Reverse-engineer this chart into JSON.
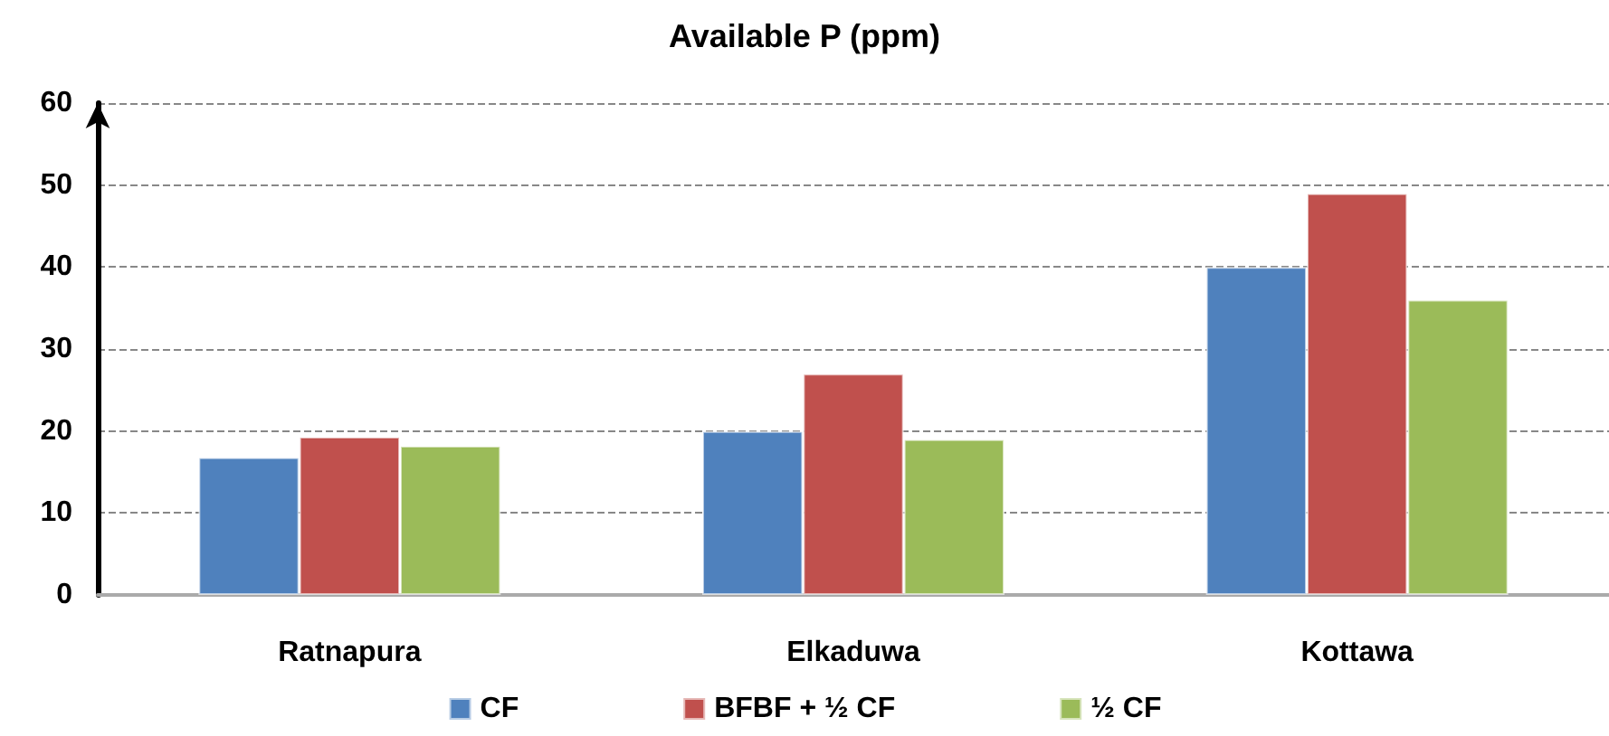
{
  "chart_data": {
    "type": "bar",
    "title": "Available P (ppm)",
    "categories": [
      "Ratnapura",
      "Elkaduwa",
      "Kottawa"
    ],
    "series": [
      {
        "name": "CF",
        "color": "#4f81bd",
        "values": [
          16.8,
          20,
          40
        ]
      },
      {
        "name": "BFBF + ½ CF",
        "color": "#c0504d",
        "values": [
          19.3,
          27,
          49
        ]
      },
      {
        "name": "½ CF",
        "color": "#9bbb59",
        "values": [
          18.2,
          19,
          36
        ]
      }
    ],
    "ylim": [
      0,
      60
    ],
    "yticks": [
      0,
      10,
      20,
      30,
      40,
      50,
      60
    ],
    "grid": "y",
    "legend": "bottom"
  }
}
